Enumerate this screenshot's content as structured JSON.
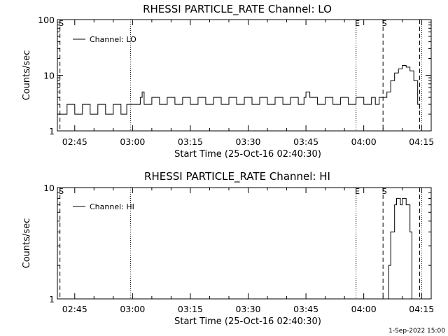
{
  "chart_data": [
    {
      "type": "line",
      "title": "RHESSI PARTICLE_RATE Channel: LO",
      "xlabel": "Start Time (25-Oct-16 02:40:30)",
      "ylabel": "Counts/sec",
      "yscale": "log",
      "ylim": [
        1,
        100
      ],
      "yticks": [
        {
          "value": 1,
          "label": "1"
        },
        {
          "value": 10,
          "label": "10"
        },
        {
          "value": 100,
          "label": "100"
        }
      ],
      "xlim": [
        "02:40:30",
        "04:17:30"
      ],
      "xticks": [
        "02:45",
        "03:00",
        "03:15",
        "03:30",
        "03:45",
        "04:00",
        "04:15"
      ],
      "legend": {
        "position": "top-left",
        "entries": [
          "Channel: LO"
        ]
      },
      "series": [
        {
          "name": "Channel: LO",
          "x": [
            "02:40:30",
            "02:43:00",
            "02:45:00",
            "02:47:00",
            "02:49:00",
            "02:51:00",
            "02:53:00",
            "02:55:00",
            "02:57:00",
            "02:58:30",
            "02:59:30",
            "03:01:00",
            "03:02:00",
            "03:02:30",
            "03:03:00",
            "03:05:00",
            "03:07:00",
            "03:09:00",
            "03:11:00",
            "03:13:00",
            "03:15:00",
            "03:17:00",
            "03:19:00",
            "03:21:00",
            "03:23:00",
            "03:25:00",
            "03:27:00",
            "03:29:00",
            "03:31:00",
            "03:33:00",
            "03:35:00",
            "03:37:00",
            "03:39:00",
            "03:41:00",
            "03:43:00",
            "03:44:30",
            "03:45:00",
            "03:46:00",
            "03:48:00",
            "03:50:00",
            "03:52:00",
            "03:54:00",
            "03:56:00",
            "03:58:00",
            "04:00:00",
            "04:02:00",
            "04:03:00",
            "04:04:00",
            "04:05:00",
            "04:06:00",
            "04:07:00",
            "04:08:00",
            "04:09:00",
            "04:10:00",
            "04:11:00",
            "04:12:00",
            "04:13:00",
            "04:14:00",
            "04:14:30"
          ],
          "y": [
            2,
            3,
            2,
            3,
            2,
            3,
            2,
            3,
            2,
            3,
            3,
            3,
            4,
            5,
            3,
            4,
            3,
            4,
            3,
            4,
            3,
            4,
            3,
            4,
            3,
            4,
            3,
            4,
            3,
            4,
            3,
            4,
            3,
            4,
            3,
            4,
            5,
            4,
            3,
            4,
            3,
            4,
            3,
            4,
            3,
            4,
            3,
            4,
            4,
            5,
            8,
            11,
            13,
            15,
            14,
            12,
            8,
            3,
            2.5
          ]
        }
      ],
      "markers": [
        {
          "label": "S",
          "time": "02:41:10",
          "style": "dashed"
        },
        {
          "label": "",
          "time": "02:59:30",
          "style": "dotted"
        },
        {
          "label": "E",
          "time": "03:58:00",
          "style": "dotted"
        },
        {
          "label": "S",
          "time": "04:05:00",
          "style": "dashed"
        },
        {
          "label": "",
          "time": "04:14:30",
          "style": "dashed"
        },
        {
          "label": "",
          "time": "04:15:00",
          "style": "dotted"
        }
      ]
    },
    {
      "type": "line",
      "title": "RHESSI PARTICLE_RATE Channel: HI",
      "xlabel": "Start Time (25-Oct-16 02:40:30)",
      "ylabel": "Counts/sec",
      "yscale": "log",
      "ylim": [
        1,
        10
      ],
      "yticks": [
        {
          "value": 1,
          "label": "1"
        },
        {
          "value": 10,
          "label": "10"
        }
      ],
      "xlim": [
        "02:40:30",
        "04:17:30"
      ],
      "xticks": [
        "02:45",
        "03:00",
        "03:15",
        "03:30",
        "03:45",
        "04:00",
        "04:15"
      ],
      "legend": {
        "position": "top-left",
        "entries": [
          "Channel: HI"
        ]
      },
      "series": [
        {
          "name": "Channel: HI",
          "x": [
            "04:06:00",
            "04:06:30",
            "04:07:00",
            "04:08:00",
            "04:08:30",
            "04:09:00",
            "04:09:30",
            "04:10:00",
            "04:10:30",
            "04:11:00",
            "04:12:00",
            "04:12:30"
          ],
          "y": [
            1,
            2,
            4,
            7,
            8,
            8,
            7,
            8,
            8,
            7,
            4,
            1
          ]
        }
      ],
      "markers": [
        {
          "label": "S",
          "time": "02:41:10",
          "style": "dashed"
        },
        {
          "label": "",
          "time": "02:59:30",
          "style": "dotted"
        },
        {
          "label": "E",
          "time": "03:58:00",
          "style": "dotted"
        },
        {
          "label": "S",
          "time": "04:05:00",
          "style": "dashed"
        },
        {
          "label": "",
          "time": "04:14:30",
          "style": "dashed"
        },
        {
          "label": "",
          "time": "04:15:00",
          "style": "dotted"
        }
      ]
    }
  ],
  "footer": {
    "timestamp": "1-Sep-2022 15:00"
  }
}
